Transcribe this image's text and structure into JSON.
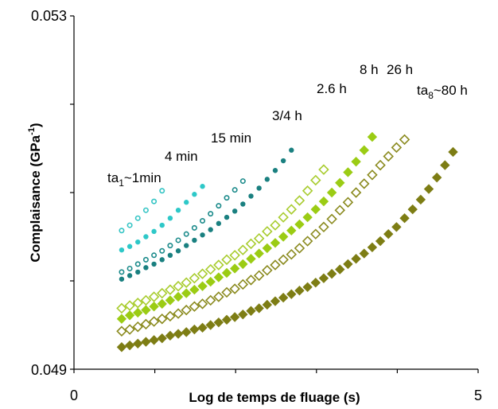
{
  "chart_data": {
    "type": "scatter",
    "xlabel": "Log de temps de fluage (s)",
    "ylabel_main": "Complaisance (GPa",
    "ylabel_sup": "-1",
    "ylabel_end": ")",
    "xlim": [
      0,
      5
    ],
    "ylim": [
      0.049,
      0.053
    ],
    "x_ticks": [
      "0",
      "5"
    ],
    "y_ticks": [
      "0.049",
      "0.053"
    ],
    "minor_x_ticks": [
      1,
      2,
      3,
      4
    ],
    "minor_y_ticks": [
      0.05,
      0.051,
      0.052
    ],
    "series": [
      {
        "label_main": "ta",
        "label_sub": "1",
        "label_end": "~1min",
        "color": "#33c4c4",
        "marker": "circle",
        "filled": false,
        "x": [
          0.59,
          0.69,
          0.79,
          0.89,
          0.99,
          1.09
        ],
        "y": [
          0.05057,
          0.05063,
          0.05071,
          0.0508,
          0.0509,
          0.05102
        ]
      },
      {
        "label_main": "4 min",
        "color": "#2ec8c8",
        "marker": "circle",
        "filled": true,
        "x": [
          0.59,
          0.69,
          0.79,
          0.89,
          0.99,
          1.09,
          1.19,
          1.29,
          1.39,
          1.49,
          1.59
        ],
        "y": [
          0.05035,
          0.05039,
          0.05044,
          0.0505,
          0.05056,
          0.05063,
          0.05071,
          0.0508,
          0.05089,
          0.05098,
          0.05107
        ]
      },
      {
        "label_main": "15 min",
        "color": "#1a8a8a",
        "marker": "circle",
        "filled": false,
        "x": [
          0.59,
          0.69,
          0.79,
          0.89,
          0.99,
          1.09,
          1.19,
          1.29,
          1.39,
          1.49,
          1.59,
          1.69,
          1.79,
          1.89,
          1.99,
          2.09
        ],
        "y": [
          0.0501,
          0.05014,
          0.05019,
          0.05024,
          0.05029,
          0.05034,
          0.0504,
          0.05046,
          0.05053,
          0.0506,
          0.05068,
          0.05076,
          0.05085,
          0.05094,
          0.05103,
          0.05113
        ]
      },
      {
        "label_main": "3/4 h",
        "color": "#1a8080",
        "marker": "circle",
        "filled": true,
        "x": [
          0.59,
          0.69,
          0.79,
          0.89,
          0.99,
          1.09,
          1.19,
          1.29,
          1.39,
          1.49,
          1.59,
          1.69,
          1.79,
          1.89,
          1.99,
          2.09,
          2.19,
          2.29,
          2.39,
          2.49,
          2.59,
          2.69
        ],
        "y": [
          0.05002,
          0.05006,
          0.0501,
          0.05015,
          0.05019,
          0.05024,
          0.05029,
          0.05034,
          0.0504,
          0.05046,
          0.05052,
          0.05058,
          0.05065,
          0.05072,
          0.05079,
          0.05087,
          0.05096,
          0.05105,
          0.05115,
          0.05125,
          0.05136,
          0.05148
        ]
      },
      {
        "label_main": "2.6 h",
        "color": "#a8cc2e",
        "marker": "diamond",
        "filled": false,
        "x": [
          0.59,
          0.69,
          0.79,
          0.89,
          0.99,
          1.09,
          1.19,
          1.29,
          1.39,
          1.49,
          1.59,
          1.69,
          1.79,
          1.89,
          1.99,
          2.09,
          2.19,
          2.29,
          2.39,
          2.49,
          2.59,
          2.69,
          2.79,
          2.89,
          2.99,
          3.09
        ],
        "y": [
          0.04969,
          0.04972,
          0.04975,
          0.04978,
          0.04982,
          0.04986,
          0.0499,
          0.04994,
          0.04998,
          0.05003,
          0.05008,
          0.05013,
          0.05018,
          0.05024,
          0.05029,
          0.05035,
          0.05042,
          0.05048,
          0.05056,
          0.05063,
          0.05072,
          0.05081,
          0.05091,
          0.05102,
          0.05114,
          0.05126
        ]
      },
      {
        "label_main": "8 h",
        "color": "#9bcc14",
        "marker": "diamond",
        "filled": true,
        "x": [
          0.59,
          0.69,
          0.79,
          0.89,
          0.99,
          1.09,
          1.19,
          1.29,
          1.39,
          1.49,
          1.59,
          1.69,
          1.79,
          1.89,
          1.99,
          2.09,
          2.19,
          2.29,
          2.39,
          2.49,
          2.59,
          2.69,
          2.79,
          2.89,
          2.99,
          3.09,
          3.19,
          3.29,
          3.39,
          3.49,
          3.59,
          3.69
        ],
        "y": [
          0.04957,
          0.04961,
          0.04964,
          0.04967,
          0.04971,
          0.04974,
          0.04978,
          0.04982,
          0.04986,
          0.0499,
          0.04994,
          0.04999,
          0.05004,
          0.05009,
          0.05014,
          0.05019,
          0.05025,
          0.05031,
          0.05037,
          0.05043,
          0.0505,
          0.05057,
          0.05064,
          0.05072,
          0.05081,
          0.0509,
          0.051,
          0.05111,
          0.05123,
          0.05135,
          0.05148,
          0.05163
        ]
      },
      {
        "label_main": "26 h",
        "color": "#8a8a1e",
        "marker": "diamond",
        "filled": false,
        "x": [
          0.59,
          0.69,
          0.79,
          0.89,
          0.99,
          1.09,
          1.19,
          1.29,
          1.39,
          1.49,
          1.59,
          1.69,
          1.79,
          1.89,
          1.99,
          2.09,
          2.19,
          2.29,
          2.39,
          2.49,
          2.59,
          2.69,
          2.79,
          2.89,
          2.99,
          3.09,
          3.19,
          3.29,
          3.39,
          3.49,
          3.59,
          3.69,
          3.79,
          3.89,
          3.99,
          4.09
        ],
        "y": [
          0.04943,
          0.04945,
          0.04948,
          0.04951,
          0.04954,
          0.04957,
          0.0496,
          0.04963,
          0.04967,
          0.04971,
          0.04974,
          0.04978,
          0.04982,
          0.04987,
          0.04991,
          0.04996,
          0.05001,
          0.05006,
          0.05012,
          0.05018,
          0.05024,
          0.0503,
          0.05037,
          0.05045,
          0.05053,
          0.05061,
          0.0507,
          0.0508,
          0.05089,
          0.051,
          0.0511,
          0.0512,
          0.05131,
          0.05141,
          0.05151,
          0.0516
        ]
      },
      {
        "label_main": "ta",
        "label_sub": "8",
        "label_end": "~80 h",
        "color": "#7d7d14",
        "marker": "diamond",
        "filled": true,
        "x": [
          0.59,
          0.69,
          0.79,
          0.89,
          0.99,
          1.09,
          1.19,
          1.29,
          1.39,
          1.49,
          1.59,
          1.69,
          1.79,
          1.89,
          1.99,
          2.09,
          2.19,
          2.29,
          2.39,
          2.49,
          2.59,
          2.69,
          2.79,
          2.89,
          2.99,
          3.09,
          3.19,
          3.29,
          3.39,
          3.49,
          3.59,
          3.69,
          3.79,
          3.89,
          3.99,
          4.09,
          4.19,
          4.29,
          4.39,
          4.49,
          4.59,
          4.69
        ],
        "y": [
          0.04925,
          0.04927,
          0.04929,
          0.04931,
          0.04933,
          0.04935,
          0.04938,
          0.0494,
          0.04942,
          0.04945,
          0.04947,
          0.0495,
          0.04953,
          0.04956,
          0.04959,
          0.04962,
          0.04966,
          0.04969,
          0.04973,
          0.04977,
          0.04981,
          0.04985,
          0.04989,
          0.04993,
          0.04998,
          0.05003,
          0.05008,
          0.05013,
          0.05019,
          0.05025,
          0.05031,
          0.05038,
          0.05045,
          0.05053,
          0.05061,
          0.05071,
          0.05081,
          0.05092,
          0.05104,
          0.05117,
          0.05131,
          0.05146
        ]
      }
    ]
  }
}
